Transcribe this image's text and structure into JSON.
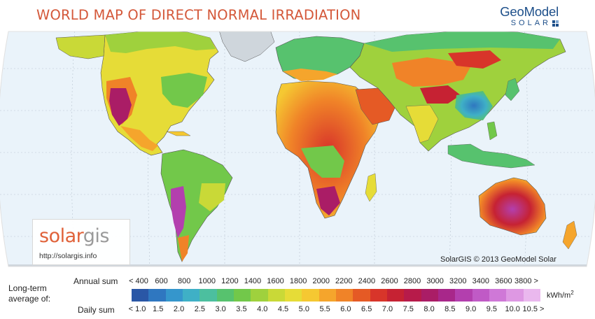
{
  "title": "WORLD MAP OF DIRECT NORMAL IRRADIATION",
  "brand": {
    "name": "GeoModel",
    "sub": "SOLAR"
  },
  "logo": {
    "part1": "solar",
    "part2": "gis",
    "url": "http://solargis.info"
  },
  "copyright": "SolarGIS © 2013 GeoModel Solar",
  "legend": {
    "caption_line1": "Long-term",
    "caption_line2": "average of:",
    "annual_label": "Annual sum",
    "daily_label": "Daily sum",
    "unit": "kWh/m",
    "unit_sup": "2",
    "annual_ticks": [
      "< 400",
      "600",
      "800",
      "1000",
      "1200",
      "1400",
      "1600",
      "1800",
      "2000",
      "2200",
      "2400",
      "2600",
      "2800",
      "3000",
      "3200",
      "3400",
      "3600",
      "3800 >"
    ],
    "daily_ticks": [
      "< 1.0",
      "1.5",
      "2.0",
      "2.5",
      "3.0",
      "3.5",
      "4.0",
      "4.5",
      "5.0",
      "5.5",
      "6.0",
      "6.5",
      "7.0",
      "7.5",
      "8.0",
      "8.5",
      "9.0",
      "9.5",
      "10.0",
      "10.5 >"
    ],
    "colors": [
      "#2a57a6",
      "#2f77c0",
      "#3596cc",
      "#3fb0c6",
      "#4cbf9f",
      "#57c26e",
      "#72c84a",
      "#9fd13d",
      "#c9d937",
      "#e6dc37",
      "#f5c832",
      "#f5a52c",
      "#f08328",
      "#e55a25",
      "#d8352a",
      "#c62233",
      "#b71b4a",
      "#aa1d66",
      "#a8278a",
      "#b33fae",
      "#c05ac6",
      "#cf78d7",
      "#de98e3",
      "#eab8ee"
    ]
  },
  "map": {
    "ocean_color": "#eaf3fa",
    "land_colors": {
      "low_blue": "#3596cc",
      "green": "#72c84a",
      "yellow_green": "#c9d937",
      "yellow": "#e6dc37",
      "orange": "#f5a52c",
      "red": "#d8352a",
      "magenta": "#b71b4a",
      "pink": "#c05ac6",
      "ice": "#cfd6dc"
    }
  }
}
